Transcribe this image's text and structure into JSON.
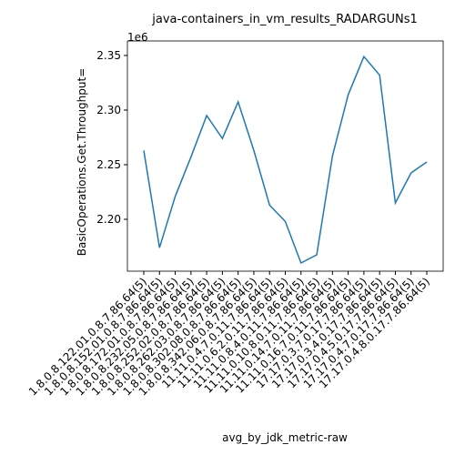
{
  "chart_data": {
    "type": "line",
    "title": "java-containers_in_vm_results_RADARGUNs1",
    "xlabel": "avg_by_jdk_metric-raw",
    "ylabel": "BasicOperations.Get.Throughput=",
    "y_offset_label": "1e6",
    "categories": [
      "1.8.0.8.122.01.0.8.7.86.64(5)",
      "1.8.0.8.152.01.0.8.7.86.64(5)",
      "1.8.0.8.172.01.0.8.7.86.64(5)",
      "1.8.0.8.232.05.0.8.7.86.64(5)",
      "1.8.0.8.252.02.0.8.7.86.64(5)",
      "1.8.0.8.262.03.0.8.7.86.64(5)",
      "1.8.0.8.302.08.0.8.7.86.64(5)",
      "1.8.0.8.342.06.0.8.7.86.64(5)",
      "11.11.0.4.7.0.11.7.86.64(5)",
      "11.11.0.6.2.0.11.7.86.64(5)",
      "11.11.0.8.4.0.11.7.86.64(5)",
      "11.11.0.10.8.0.11.7.86.64(5)",
      "11.11.0.14.7.0.11.7.86.64(5)",
      "11.11.0.16.7.0.11.7.86.64(5)",
      "17.17.0.3.7.0.17.7.86.64(5)",
      "17.17.0.3.4.0.17.7.86.64(5)",
      "17.17.0.4.5.0.17.7.86.64(5)",
      "17.17.0.4.7.0.17.7.86.64(5)",
      "17.17.0.4.8.0.17.7.86.64(5)"
    ],
    "series": [
      {
        "name": "BasicOperations.Get.Throughput=",
        "color": "#1f77b4",
        "values": [
          2263000,
          2174000,
          2221000,
          2257000,
          2295000,
          2274000,
          2307500,
          2263000,
          2213000,
          2198000,
          2160000,
          2167500,
          2258000,
          2314000,
          2349000,
          2332000,
          2215000,
          2242500,
          2252500
        ]
      }
    ],
    "ylim": [
      2152500,
      2363300
    ],
    "yticks": [
      {
        "value": 2200000,
        "label": "2.20"
      },
      {
        "value": 2250000,
        "label": "2.25"
      },
      {
        "value": 2300000,
        "label": "2.30"
      },
      {
        "value": 2350000,
        "label": "2.35"
      }
    ]
  }
}
